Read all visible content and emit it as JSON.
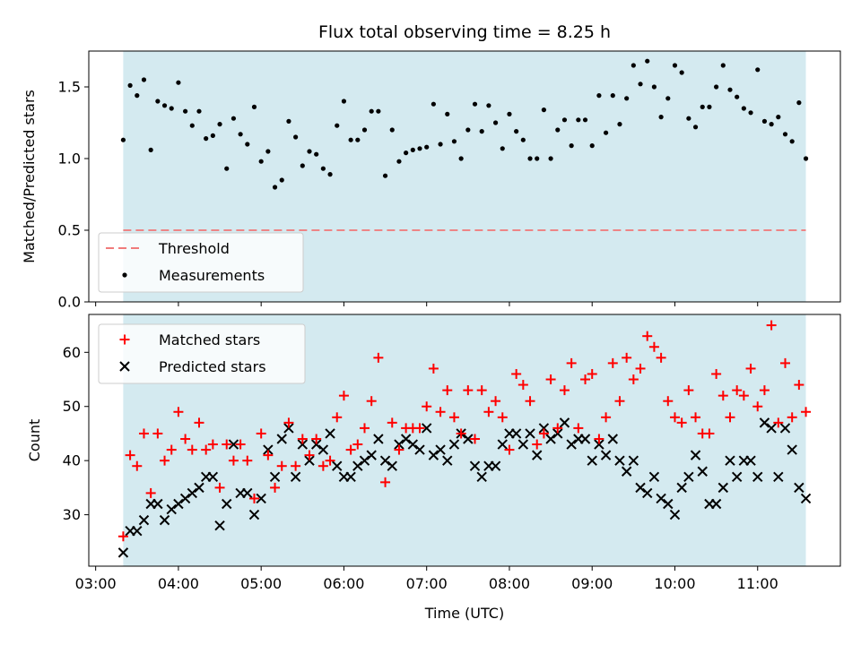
{
  "chart_data": [
    {
      "type": "scatter",
      "title": "Flux total observing time = 8.25 h",
      "xlabel": "",
      "ylabel": "Matched/Predicted stars",
      "ylim": [
        0,
        1.75
      ],
      "yticks": [
        "0.0",
        "0.5",
        "1.0",
        "1.5"
      ],
      "xlim_hours": [
        2.917,
        12.0
      ],
      "shaded_span_hours": [
        3.333,
        11.583
      ],
      "background_color": "#d4eaf0",
      "threshold": {
        "name": "Threshold",
        "value": 0.5,
        "color": "#f07b7b",
        "style": "dashed"
      },
      "legend_location": "lower-left",
      "series": [
        {
          "name": "Measurements",
          "color": "#000000",
          "marker": "dot",
          "x": [
            "03:20",
            "03:25",
            "03:30",
            "03:35",
            "03:40",
            "03:45",
            "03:50",
            "03:55",
            "04:00",
            "04:05",
            "04:10",
            "04:15",
            "04:20",
            "04:25",
            "04:30",
            "04:35",
            "04:40",
            "04:45",
            "04:50",
            "04:55",
            "05:00",
            "05:05",
            "05:10",
            "05:15",
            "05:20",
            "05:25",
            "05:30",
            "05:35",
            "05:40",
            "05:45",
            "05:50",
            "05:55",
            "06:00",
            "06:05",
            "06:10",
            "06:15",
            "06:20",
            "06:25",
            "06:30",
            "06:35",
            "06:40",
            "06:45",
            "06:50",
            "06:55",
            "07:00",
            "07:05",
            "07:10",
            "07:15",
            "07:20",
            "07:25",
            "07:30",
            "07:35",
            "07:40",
            "07:45",
            "07:50",
            "07:55",
            "08:00",
            "08:05",
            "08:10",
            "08:15",
            "08:20",
            "08:25",
            "08:30",
            "08:35",
            "08:40",
            "08:45",
            "08:50",
            "08:55",
            "09:00",
            "09:05",
            "09:10",
            "09:15",
            "09:20",
            "09:25",
            "09:30",
            "09:35",
            "09:40",
            "09:45",
            "09:50",
            "09:55",
            "10:00",
            "10:05",
            "10:10",
            "10:15",
            "10:20",
            "10:25",
            "10:30",
            "10:35",
            "10:40",
            "10:45",
            "10:50",
            "10:55",
            "11:00",
            "11:05",
            "11:10",
            "11:15",
            "11:20",
            "11:25",
            "11:30",
            "11:35"
          ],
          "y": [
            1.13,
            1.51,
            1.44,
            1.55,
            1.06,
            1.4,
            1.37,
            1.35,
            1.53,
            1.33,
            1.23,
            1.33,
            1.14,
            1.16,
            1.24,
            0.93,
            1.28,
            1.17,
            1.1,
            1.36,
            0.98,
            1.05,
            0.8,
            0.85,
            1.26,
            1.15,
            0.95,
            1.05,
            1.03,
            0.93,
            0.89,
            1.23,
            1.4,
            1.13,
            1.13,
            1.2,
            1.33,
            1.33,
            0.88,
            1.2,
            0.98,
            1.04,
            1.06,
            1.07,
            1.08,
            1.38,
            1.1,
            1.31,
            1.12,
            1.0,
            1.2,
            1.38,
            1.19,
            1.37,
            1.25,
            1.07,
            1.31,
            1.19,
            1.13,
            1.0,
            1.0,
            1.34,
            1.0,
            1.2,
            1.27,
            1.09,
            1.27,
            1.27,
            1.09,
            1.44,
            1.18,
            1.44,
            1.24,
            1.42,
            1.65,
            1.52,
            1.68,
            1.5,
            1.29,
            1.42,
            1.65,
            1.6,
            1.28,
            1.22,
            1.36,
            1.36,
            1.5,
            1.65,
            1.48,
            1.43,
            1.35,
            1.32,
            1.62,
            1.26,
            1.24,
            1.29,
            1.17,
            1.12,
            1.39,
            1.0
          ]
        }
      ]
    },
    {
      "type": "scatter",
      "title": "",
      "xlabel": "Time (UTC)",
      "ylabel": "Count",
      "ylim": [
        20.5,
        67
      ],
      "yticks": [
        "30",
        "40",
        "50",
        "60"
      ],
      "xticks": [
        "03:00",
        "04:00",
        "05:00",
        "06:00",
        "07:00",
        "08:00",
        "09:00",
        "10:00",
        "11:00"
      ],
      "xlim_hours": [
        2.917,
        12.0
      ],
      "shaded_span_hours": [
        3.333,
        11.583
      ],
      "background_color": "#d4eaf0",
      "legend_location": "top-left",
      "series": [
        {
          "name": "Matched stars",
          "color": "#ff0000",
          "marker": "plus",
          "x": [
            "03:20",
            "03:25",
            "03:30",
            "03:35",
            "03:40",
            "03:45",
            "03:50",
            "03:55",
            "04:00",
            "04:05",
            "04:10",
            "04:15",
            "04:20",
            "04:25",
            "04:30",
            "04:35",
            "04:40",
            "04:45",
            "04:50",
            "04:55",
            "05:00",
            "05:05",
            "05:10",
            "05:15",
            "05:20",
            "05:25",
            "05:30",
            "05:35",
            "05:40",
            "05:45",
            "05:50",
            "05:55",
            "06:00",
            "06:05",
            "06:10",
            "06:15",
            "06:20",
            "06:25",
            "06:30",
            "06:35",
            "06:40",
            "06:45",
            "06:50",
            "06:55",
            "07:00",
            "07:05",
            "07:10",
            "07:15",
            "07:20",
            "07:25",
            "07:30",
            "07:35",
            "07:40",
            "07:45",
            "07:50",
            "07:55",
            "08:00",
            "08:05",
            "08:10",
            "08:15",
            "08:20",
            "08:25",
            "08:30",
            "08:35",
            "08:40",
            "08:45",
            "08:50",
            "08:55",
            "09:00",
            "09:05",
            "09:10",
            "09:15",
            "09:20",
            "09:25",
            "09:30",
            "09:35",
            "09:40",
            "09:45",
            "09:50",
            "09:55",
            "10:00",
            "10:05",
            "10:10",
            "10:15",
            "10:20",
            "10:25",
            "10:30",
            "10:35",
            "10:40",
            "10:45",
            "10:50",
            "10:55",
            "11:00",
            "11:05",
            "11:10",
            "11:15",
            "11:20",
            "11:25",
            "11:30",
            "11:35"
          ],
          "y": [
            26,
            41,
            39,
            45,
            34,
            45,
            40,
            42,
            49,
            44,
            42,
            47,
            42,
            43,
            35,
            43,
            40,
            43,
            40,
            33,
            45,
            41,
            35,
            39,
            47,
            39,
            44,
            41,
            44,
            39,
            40,
            48,
            52,
            42,
            43,
            46,
            51,
            59,
            36,
            47,
            42,
            46,
            46,
            46,
            50,
            57,
            49,
            53,
            48,
            45,
            53,
            44,
            53,
            49,
            51,
            48,
            42,
            56,
            54,
            51,
            43,
            45,
            55,
            46,
            53,
            58,
            46,
            55,
            56,
            44,
            48,
            58,
            51,
            59,
            55,
            57,
            63,
            61,
            59,
            51,
            48,
            47,
            53,
            48,
            45,
            45,
            56,
            52,
            48,
            53,
            52,
            57,
            50,
            53,
            65,
            47,
            58,
            48,
            54,
            49
          ]
        },
        {
          "name": "Predicted stars",
          "color": "#000000",
          "marker": "x",
          "x": [
            "03:20",
            "03:25",
            "03:30",
            "03:35",
            "03:40",
            "03:45",
            "03:50",
            "03:55",
            "04:00",
            "04:05",
            "04:10",
            "04:15",
            "04:20",
            "04:25",
            "04:30",
            "04:35",
            "04:40",
            "04:45",
            "04:50",
            "04:55",
            "05:00",
            "05:05",
            "05:10",
            "05:15",
            "05:20",
            "05:25",
            "05:30",
            "05:35",
            "05:40",
            "05:45",
            "05:50",
            "05:55",
            "06:00",
            "06:05",
            "06:10",
            "06:15",
            "06:20",
            "06:25",
            "06:30",
            "06:35",
            "06:40",
            "06:45",
            "06:50",
            "06:55",
            "07:00",
            "07:05",
            "07:10",
            "07:15",
            "07:20",
            "07:25",
            "07:30",
            "07:35",
            "07:40",
            "07:45",
            "07:50",
            "07:55",
            "08:00",
            "08:05",
            "08:10",
            "08:15",
            "08:20",
            "08:25",
            "08:30",
            "08:35",
            "08:40",
            "08:45",
            "08:50",
            "08:55",
            "09:00",
            "09:05",
            "09:10",
            "09:15",
            "09:20",
            "09:25",
            "09:30",
            "09:35",
            "09:40",
            "09:45",
            "09:50",
            "09:55",
            "10:00",
            "10:05",
            "10:10",
            "10:15",
            "10:20",
            "10:25",
            "10:30",
            "10:35",
            "10:40",
            "10:45",
            "10:50",
            "10:55",
            "11:00",
            "11:05",
            "11:10",
            "11:15",
            "11:20",
            "11:25",
            "11:30",
            "11:35"
          ],
          "y": [
            23,
            27,
            27,
            29,
            32,
            32,
            29,
            31,
            32,
            33,
            34,
            35,
            37,
            37,
            28,
            32,
            43,
            34,
            34,
            30,
            33,
            42,
            37,
            44,
            46,
            37,
            43,
            40,
            43,
            42,
            45,
            39,
            37,
            37,
            39,
            40,
            41,
            44,
            40,
            39,
            43,
            44,
            43,
            42,
            46,
            41,
            42,
            40,
            43,
            45,
            44,
            39,
            37,
            39,
            39,
            43,
            45,
            45,
            43,
            45,
            41,
            46,
            44,
            45,
            47,
            43,
            44,
            44,
            40,
            43,
            41,
            44,
            40,
            38,
            40,
            35,
            34,
            37,
            33,
            32,
            30,
            35,
            37,
            41,
            38,
            32,
            32,
            35,
            40,
            37,
            40,
            40,
            37,
            47,
            46,
            37,
            46,
            42,
            35,
            33
          ]
        }
      ]
    }
  ]
}
